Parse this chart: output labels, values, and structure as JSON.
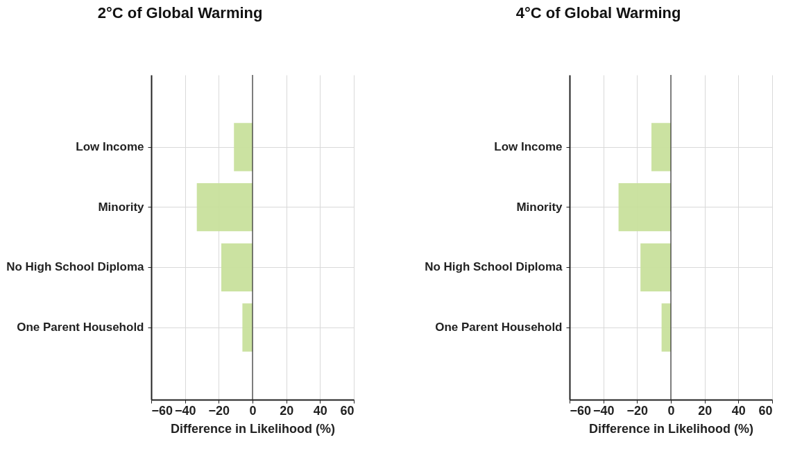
{
  "chart_data": [
    {
      "type": "bar",
      "orientation": "horizontal",
      "title": "2°C of Global Warming",
      "xlabel": "Difference in Likelihood (%)",
      "categories": [
        "Low Income",
        "Minority",
        "No High School Diploma",
        "One Parent Household"
      ],
      "values": [
        -11,
        -33,
        -18.5,
        -6
      ],
      "color": "#c8e09c",
      "xlim": [
        -60,
        60
      ],
      "xticks": [
        -60,
        -40,
        -20,
        0,
        20,
        40,
        60
      ],
      "grid": true,
      "ref_lines": [
        {
          "axis": "x",
          "value": 0,
          "color": "#333333"
        }
      ]
    },
    {
      "type": "bar",
      "orientation": "horizontal",
      "title": "4°C of Global Warming",
      "xlabel": "Difference in Likelihood (%)",
      "categories": [
        "Low Income",
        "Minority",
        "No High School Diploma",
        "One Parent Household"
      ],
      "values": [
        -11.5,
        -31,
        -18,
        -5.5
      ],
      "color": "#c8e09c",
      "xlim": [
        -60,
        60
      ],
      "xticks": [
        -60,
        -40,
        -20,
        0,
        20,
        40,
        60
      ],
      "grid": true,
      "ref_lines": [
        {
          "axis": "x",
          "value": 0,
          "color": "#333333"
        }
      ]
    }
  ]
}
